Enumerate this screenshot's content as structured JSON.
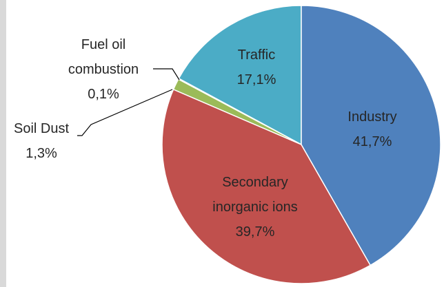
{
  "chart_data": {
    "type": "pie",
    "categories": [
      "Industry",
      "Secondary inorganic ions",
      "Soil Dust",
      "Fuel oil combustion",
      "Traffic"
    ],
    "values": [
      41.7,
      39.7,
      1.3,
      0.1,
      17.1
    ],
    "value_labels": [
      "41,7%",
      "39,7%",
      "1,3%",
      "0,1%",
      "17,1%"
    ],
    "colors": [
      "#4f81bd",
      "#c0504d",
      "#9bbb59",
      "#8064a2",
      "#4bacc6"
    ]
  }
}
